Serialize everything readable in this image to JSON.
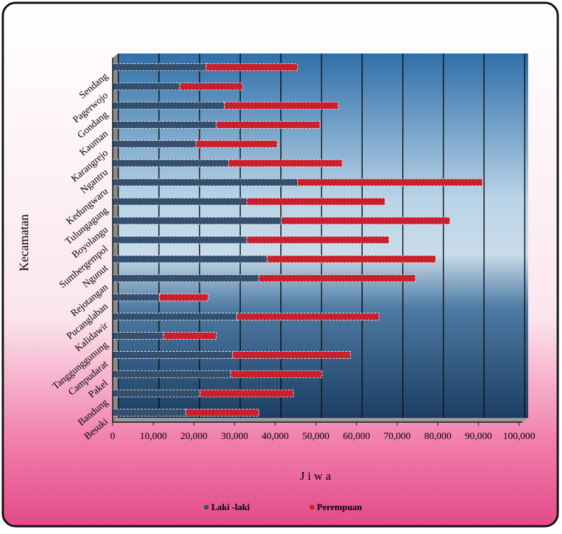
{
  "chart_data": {
    "type": "stacked-bar-horizontal",
    "x_label": "J i w a",
    "y_label": "Kecamatan",
    "categories": [
      "Besuki",
      "Bandung",
      "Pakel",
      "Campudarat",
      "Tanggunggunung",
      "Kalidawir",
      "Pucanglaban",
      "Rejotangan",
      "Ngunut",
      "Sumbergempol",
      "Boyolangu",
      "Tulungagung",
      "Kedungwaru",
      "Ngantru",
      "Karangrejo",
      "Kauman",
      "Gondang",
      "Pagerwojo",
      "Sendang"
    ],
    "series": [
      {
        "name": "Laki -laki",
        "color": "#34506e",
        "values": [
          18000,
          21500,
          29000,
          29500,
          12500,
          30500,
          11500,
          36000,
          38000,
          33000,
          41500,
          33000,
          45500,
          28500,
          20500,
          25500,
          27500,
          16500,
          23000
        ]
      },
      {
        "name": "Perempuan",
        "color": "#c8202c",
        "values": [
          18000,
          23000,
          22500,
          29000,
          13000,
          35000,
          12000,
          38500,
          41500,
          35000,
          41500,
          34000,
          45500,
          28000,
          20000,
          25500,
          28000,
          15500,
          22500
        ]
      }
    ],
    "xlim": [
      0,
      100000
    ],
    "xticks": [
      0,
      {
        "value": 10000,
        "label": "10,000"
      },
      {
        "value": 20000,
        "label": "20,000"
      },
      {
        "value": 30000,
        "label": "30,000"
      },
      {
        "value": 40000,
        "label": "40,000"
      },
      {
        "value": 50000,
        "label": "50,000"
      },
      {
        "value": 60000,
        "label": "60,000"
      },
      {
        "value": 70000,
        "label": "70,000"
      },
      {
        "value": 80000,
        "label": "80,000"
      },
      {
        "value": 90000,
        "label": "90,000"
      },
      {
        "value": 100000,
        "label": "100,000"
      }
    ],
    "grid": true,
    "legend": "bottom"
  }
}
